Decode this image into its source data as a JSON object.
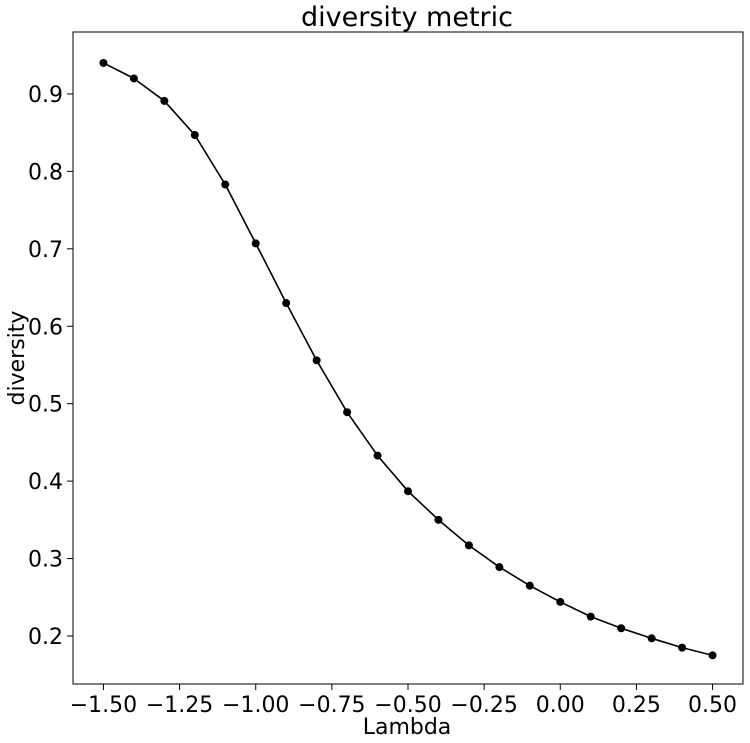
{
  "chart_data": {
    "type": "line",
    "title": "diversity metric",
    "xlabel": "Lambda",
    "ylabel": "diversity",
    "xlim": [
      -1.6,
      0.6
    ],
    "ylim": [
      0.138,
      0.98
    ],
    "x_ticks": [
      -1.5,
      -1.25,
      -1.0,
      -0.75,
      -0.5,
      -0.25,
      0.0,
      0.25,
      0.5
    ],
    "x_tick_labels": [
      "−1.50",
      "−1.25",
      "−1.00",
      "−0.75",
      "−0.50",
      "−0.25",
      "0.00",
      "0.25",
      "0.50"
    ],
    "y_ticks": [
      0.2,
      0.3,
      0.4,
      0.5,
      0.6,
      0.7,
      0.8,
      0.9
    ],
    "y_tick_labels": [
      "0.2",
      "0.3",
      "0.4",
      "0.5",
      "0.6",
      "0.7",
      "0.8",
      "0.9"
    ],
    "grid": false,
    "legend": "none",
    "line_color": "#000000",
    "marker": "circle",
    "series": [
      {
        "x": [
          -1.5,
          -1.4,
          -1.3,
          -1.2,
          -1.1,
          -1.0,
          -0.9,
          -0.8,
          -0.7,
          -0.6,
          -0.5,
          -0.4,
          -0.3,
          -0.2,
          -0.1,
          0.0,
          0.1,
          0.2,
          0.3,
          0.4,
          0.5
        ],
        "y": [
          0.94,
          0.92,
          0.891,
          0.847,
          0.783,
          0.707,
          0.63,
          0.556,
          0.489,
          0.433,
          0.387,
          0.35,
          0.317,
          0.289,
          0.265,
          0.244,
          0.225,
          0.21,
          0.197,
          0.185,
          0.175
        ]
      }
    ]
  }
}
